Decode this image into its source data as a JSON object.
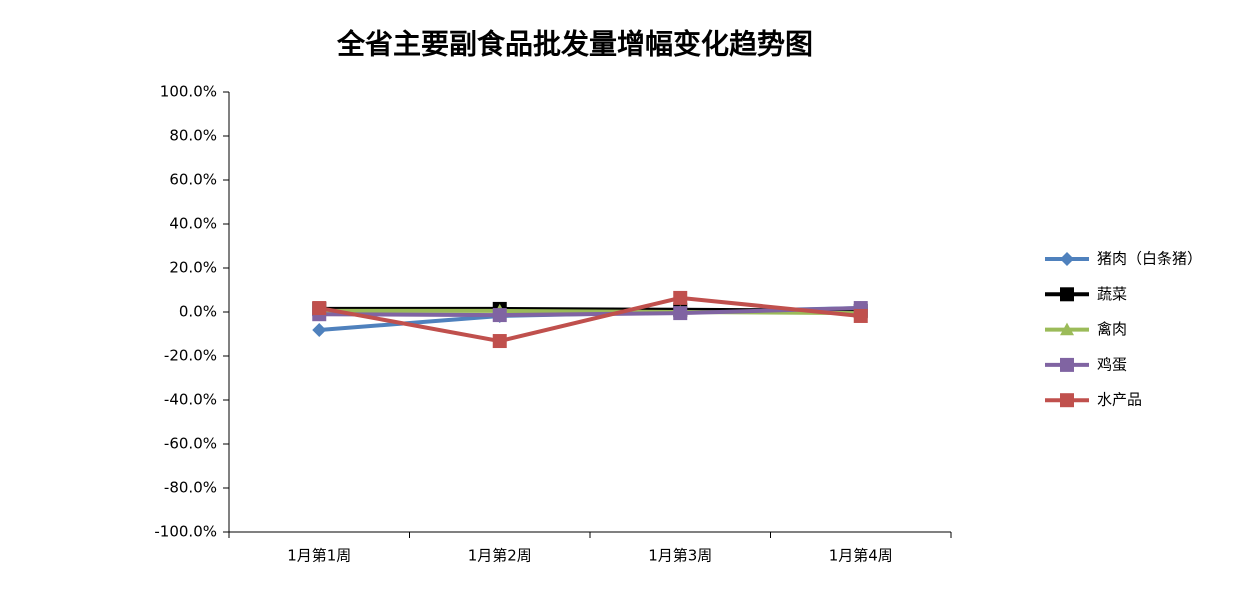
{
  "chart_data": {
    "type": "line",
    "title": "全省主要副食品批发量增幅变化趋势图",
    "categories": [
      "1月第1周",
      "1月第2周",
      "1月第3周",
      "1月第4周"
    ],
    "ylim": [
      -100,
      100
    ],
    "yticks": [
      {
        "value": -100,
        "label": "-100.0%"
      },
      {
        "value": -80,
        "label": "-80.0%"
      },
      {
        "value": -60,
        "label": "-60.0%"
      },
      {
        "value": -40,
        "label": "-40.0%"
      },
      {
        "value": -20,
        "label": "-20.0%"
      },
      {
        "value": 0,
        "label": "0.0%"
      },
      {
        "value": 20,
        "label": "20.0%"
      },
      {
        "value": 40,
        "label": "40.0%"
      },
      {
        "value": 60,
        "label": "60.0%"
      },
      {
        "value": 80,
        "label": "80.0%"
      },
      {
        "value": 100,
        "label": "100.0%"
      }
    ],
    "legend": "right",
    "series": [
      {
        "name": "猪肉（白条猪）",
        "color": "#4f81bd",
        "marker": "diamond",
        "values": [
          -8.2,
          -1.8,
          0,
          1.8
        ]
      },
      {
        "name": "蔬菜",
        "color": "#000000",
        "marker": "square",
        "values": [
          1.4,
          1.4,
          1,
          0.5
        ]
      },
      {
        "name": "禽肉",
        "color": "#9bbb59",
        "marker": "triangle",
        "values": [
          0.5,
          0.5,
          0,
          -0.5
        ]
      },
      {
        "name": "鸡蛋",
        "color": "#8064a2",
        "marker": "square",
        "values": [
          -1,
          -1.4,
          -0.5,
          1.8
        ]
      },
      {
        "name": "水产品",
        "color": "#c0504d",
        "marker": "square",
        "values": [
          1.8,
          -13.2,
          6.4,
          -1.8
        ]
      }
    ]
  }
}
